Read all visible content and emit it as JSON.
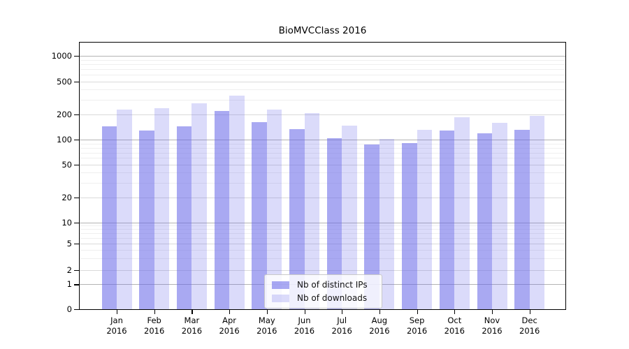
{
  "title": "BioMVCClass 2016",
  "colors": {
    "distinct_ips": "rgba(102,102,232,0.56)",
    "downloads": "rgba(102,102,232,0.235)",
    "distinct_ips_hex_on_white": "#a8a8f0",
    "downloads_hex_on_white": "#dcdcf9",
    "grid_major": "#b3b3b3",
    "grid_mid": "#dadada",
    "grid_minor": "#efefef",
    "axis": "#000000"
  },
  "legend": {
    "items": [
      {
        "label": "Nb of distinct IPs",
        "series": "distinct_ips"
      },
      {
        "label": "Nb of downloads",
        "series": "downloads"
      }
    ],
    "position": "lower center"
  },
  "chart_data": {
    "type": "bar",
    "title": "BioMVCClass 2016",
    "categories": [
      "Jan 2016",
      "Feb 2016",
      "Mar 2016",
      "Apr 2016",
      "May 2016",
      "Jun 2016",
      "Jul 2016",
      "Aug 2016",
      "Sep 2016",
      "Oct 2016",
      "Nov 2016",
      "Dec 2016"
    ],
    "series": [
      {
        "name": "Nb of distinct IPs",
        "values": [
          143,
          129,
          143,
          218,
          163,
          133,
          105,
          88,
          91,
          129,
          119,
          130
        ]
      },
      {
        "name": "Nb of downloads",
        "values": [
          226,
          236,
          272,
          338,
          228,
          205,
          148,
          103,
          131,
          185,
          159,
          192
        ]
      }
    ],
    "xlabel": "",
    "ylabel": "",
    "yscale": "symlog-like (log above ~1, linear to 0)",
    "y_ticks": [
      0,
      1,
      2,
      5,
      10,
      20,
      50,
      100,
      200,
      500,
      1000
    ],
    "y_minor_ticks": [
      3,
      4,
      6,
      7,
      8,
      9,
      30,
      40,
      60,
      70,
      80,
      90,
      300,
      400,
      600,
      700,
      800,
      900
    ],
    "ylim": [
      0,
      1400
    ],
    "grid": true,
    "legend_position": "lower center"
  }
}
